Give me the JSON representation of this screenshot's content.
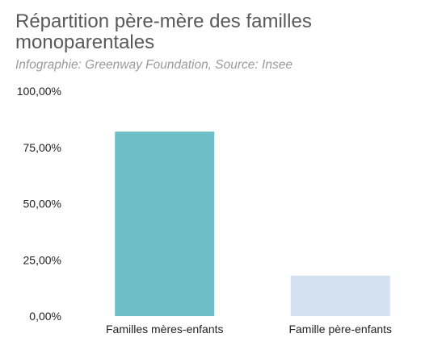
{
  "title": "Répartition père-mère des familles monoparentales",
  "subtitle": "Infographie: Greenway Foundation, Source: Insee",
  "chart_data": {
    "type": "bar",
    "categories": [
      "Familles mères-enfants",
      "Famille père-enfants"
    ],
    "values": [
      82,
      18
    ],
    "colors": [
      "#6dbec6",
      "#d4e1f1"
    ],
    "ylim": [
      0,
      100
    ],
    "yticks": [
      0,
      25,
      50,
      75,
      100
    ],
    "ytick_labels": [
      "0,00%",
      "25,00%",
      "50,00%",
      "75,00%",
      "100,00%"
    ],
    "grid": false,
    "legend": "none"
  }
}
